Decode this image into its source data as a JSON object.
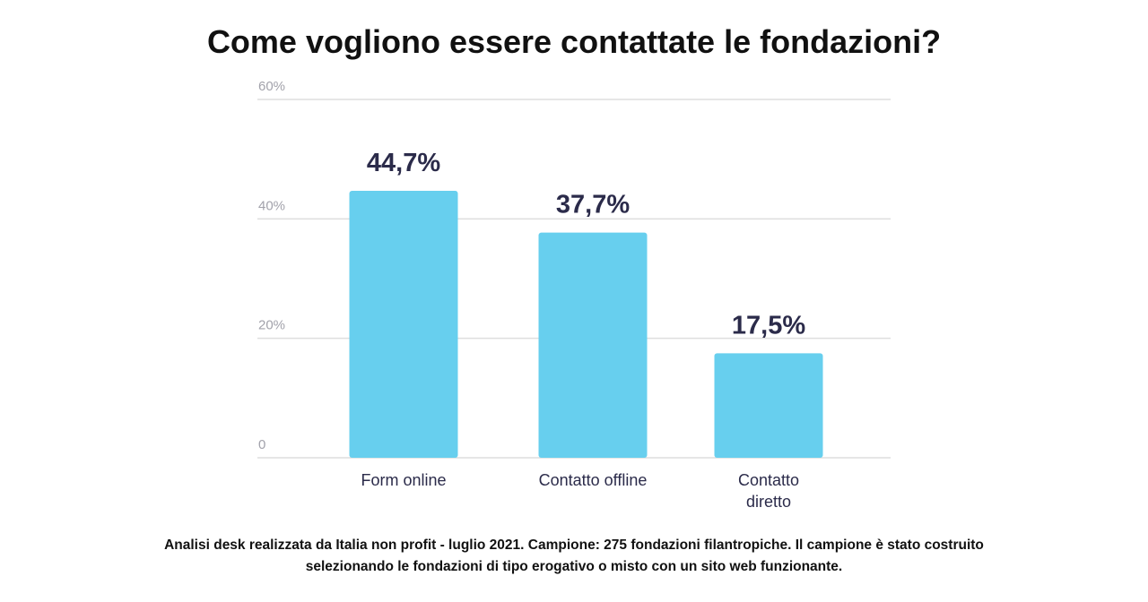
{
  "chart_data": {
    "type": "bar",
    "title": "Come vogliono essere contattate le fondazioni?",
    "categories": [
      [
        "Form online"
      ],
      [
        "Contatto offline"
      ],
      [
        "Contatto",
        "diretto"
      ]
    ],
    "values": [
      44.7,
      37.7,
      17.5
    ],
    "value_labels": [
      "44,7%",
      "37,7%",
      "17,5%"
    ],
    "y_ticks": [
      0,
      20,
      40,
      60
    ],
    "y_tick_labels": [
      "0",
      "20%",
      "40%",
      "60%"
    ],
    "ylim": [
      0,
      60
    ],
    "grid": true,
    "bar_color": "#67cfee",
    "text_color": "#2b2b4a"
  },
  "footnote": {
    "line1": "Analisi desk realizzata da Italia non profit - luglio 2021. Campione: 275 fondazioni filantropiche. Il campione è stato costruito",
    "line2": "selezionando le fondazioni di tipo erogativo o misto con un sito web funzionante."
  }
}
